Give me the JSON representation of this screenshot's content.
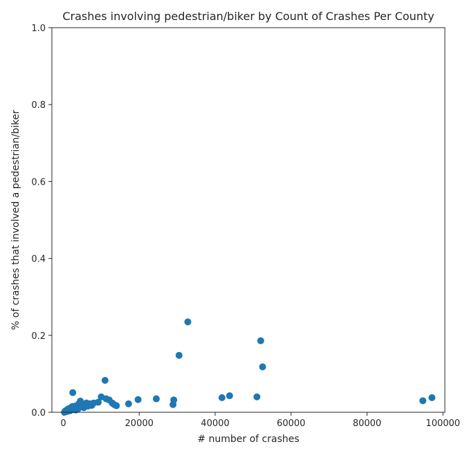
{
  "chart_data": {
    "type": "scatter",
    "title": "Crashes involving pedestrian/biker by Count of Crashes Per County",
    "xlabel": "# number of crashes",
    "ylabel": "% of crashes that involved a pedestrian/biker",
    "xlim": [
      -3000,
      100500
    ],
    "ylim": [
      0.0,
      1.0
    ],
    "x_ticks": [
      0,
      20000,
      40000,
      60000,
      80000,
      100000
    ],
    "x_tick_labels": [
      "0",
      "20000",
      "40000",
      "60000",
      "80000",
      "100000"
    ],
    "y_ticks": [
      0.0,
      0.2,
      0.4,
      0.6,
      0.8,
      1.0
    ],
    "y_tick_labels": [
      "0.0",
      "0.2",
      "0.4",
      "0.6",
      "0.8",
      "1.0"
    ],
    "grid": false,
    "marker_color": "#1f77b4",
    "points": [
      {
        "x": 300,
        "y": 0.0
      },
      {
        "x": 500,
        "y": 0.003
      },
      {
        "x": 800,
        "y": 0.005
      },
      {
        "x": 1000,
        "y": 0.002
      },
      {
        "x": 1200,
        "y": 0.008
      },
      {
        "x": 1400,
        "y": 0.006
      },
      {
        "x": 1600,
        "y": 0.01
      },
      {
        "x": 1800,
        "y": 0.004
      },
      {
        "x": 2000,
        "y": 0.012
      },
      {
        "x": 2200,
        "y": 0.009
      },
      {
        "x": 2400,
        "y": 0.015
      },
      {
        "x": 2500,
        "y": 0.051
      },
      {
        "x": 2700,
        "y": 0.007
      },
      {
        "x": 2900,
        "y": 0.011
      },
      {
        "x": 3100,
        "y": 0.016
      },
      {
        "x": 3300,
        "y": 0.006
      },
      {
        "x": 3500,
        "y": 0.013
      },
      {
        "x": 3700,
        "y": 0.018
      },
      {
        "x": 3900,
        "y": 0.009
      },
      {
        "x": 4100,
        "y": 0.022
      },
      {
        "x": 4300,
        "y": 0.014
      },
      {
        "x": 4500,
        "y": 0.029
      },
      {
        "x": 4800,
        "y": 0.017
      },
      {
        "x": 5100,
        "y": 0.021
      },
      {
        "x": 5400,
        "y": 0.012
      },
      {
        "x": 5800,
        "y": 0.019
      },
      {
        "x": 6100,
        "y": 0.024
      },
      {
        "x": 6500,
        "y": 0.016
      },
      {
        "x": 7000,
        "y": 0.022
      },
      {
        "x": 7500,
        "y": 0.018
      },
      {
        "x": 8000,
        "y": 0.024
      },
      {
        "x": 9200,
        "y": 0.026
      },
      {
        "x": 10000,
        "y": 0.04
      },
      {
        "x": 11000,
        "y": 0.083
      },
      {
        "x": 11300,
        "y": 0.035
      },
      {
        "x": 12100,
        "y": 0.032
      },
      {
        "x": 12900,
        "y": 0.024
      },
      {
        "x": 13400,
        "y": 0.02
      },
      {
        "x": 14000,
        "y": 0.017
      },
      {
        "x": 17200,
        "y": 0.022
      },
      {
        "x": 19700,
        "y": 0.033
      },
      {
        "x": 24500,
        "y": 0.035
      },
      {
        "x": 28900,
        "y": 0.02
      },
      {
        "x": 29100,
        "y": 0.032
      },
      {
        "x": 30500,
        "y": 0.148
      },
      {
        "x": 32800,
        "y": 0.235
      },
      {
        "x": 41800,
        "y": 0.038
      },
      {
        "x": 43800,
        "y": 0.043
      },
      {
        "x": 51000,
        "y": 0.04
      },
      {
        "x": 52000,
        "y": 0.186
      },
      {
        "x": 52500,
        "y": 0.118
      },
      {
        "x": 94700,
        "y": 0.03
      },
      {
        "x": 97100,
        "y": 0.038
      }
    ]
  }
}
